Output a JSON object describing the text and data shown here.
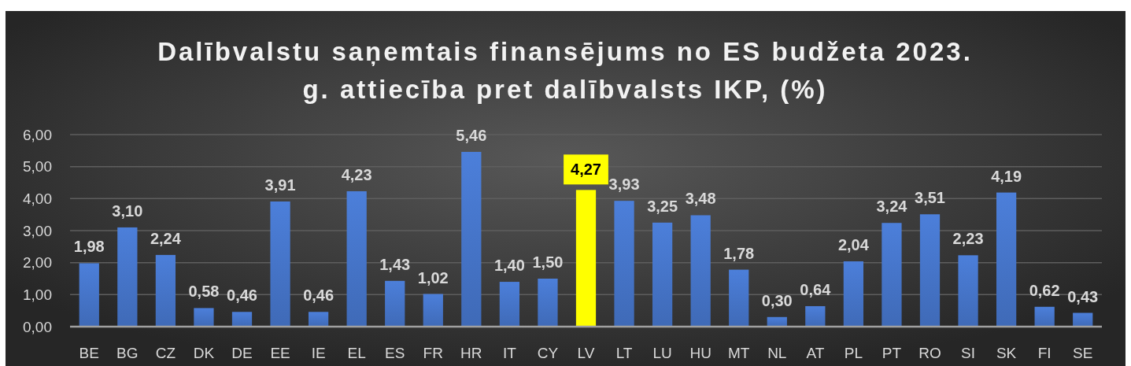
{
  "chart_data": {
    "type": "bar",
    "title": "Dalībvalstu saņemtais finansējums no ES budžeta 2023. g. attiecība pret dalībvalsts IKP, (%)",
    "categories": [
      "BE",
      "BG",
      "CZ",
      "DK",
      "DE",
      "EE",
      "IE",
      "EL",
      "ES",
      "FR",
      "HR",
      "IT",
      "CY",
      "LV",
      "LT",
      "LU",
      "HU",
      "MT",
      "NL",
      "AT",
      "PL",
      "PT",
      "RO",
      "SI",
      "SK",
      "FI",
      "SE"
    ],
    "values": [
      1.98,
      3.1,
      2.24,
      0.58,
      0.46,
      3.91,
      0.46,
      4.23,
      1.43,
      1.02,
      5.46,
      1.4,
      1.5,
      4.27,
      3.93,
      3.25,
      3.48,
      1.78,
      0.3,
      0.64,
      2.04,
      3.24,
      3.51,
      2.23,
      4.19,
      0.62,
      0.43
    ],
    "colors": [
      "#4472c4",
      "#4472c4",
      "#4472c4",
      "#4472c4",
      "#4472c4",
      "#4472c4",
      "#4472c4",
      "#4472c4",
      "#4472c4",
      "#4472c4",
      "#4472c4",
      "#4472c4",
      "#4472c4",
      "#ffff00",
      "#4472c4",
      "#4472c4",
      "#4472c4",
      "#4472c4",
      "#4472c4",
      "#4472c4",
      "#4472c4",
      "#4472c4",
      "#4472c4",
      "#4472c4",
      "#4472c4",
      "#4472c4",
      "#4472c4"
    ],
    "value_labels": [
      "1,98",
      "3,10",
      "2,24",
      "0,58",
      "0,46",
      "3,91",
      "0,46",
      "4,23",
      "1,43",
      "1,02",
      "5,46",
      "1,40",
      "1,50",
      "4,27",
      "3,93",
      "3,25",
      "3,48",
      "1,78",
      "0,30",
      "0,64",
      "2,04",
      "3,24",
      "3,51",
      "2,23",
      "4,19",
      "0,62",
      "0,43"
    ],
    "ylim": [
      0,
      6
    ],
    "yticks": [
      {
        "value": 0,
        "label": "0,00"
      },
      {
        "value": 1,
        "label": "1,00"
      },
      {
        "value": 2,
        "label": "2,00"
      },
      {
        "value": 3,
        "label": "3,00"
      },
      {
        "value": 4,
        "label": "4,00"
      },
      {
        "value": 5,
        "label": "5,00"
      },
      {
        "value": 6,
        "label": "6,00"
      }
    ],
    "grid": "y"
  }
}
